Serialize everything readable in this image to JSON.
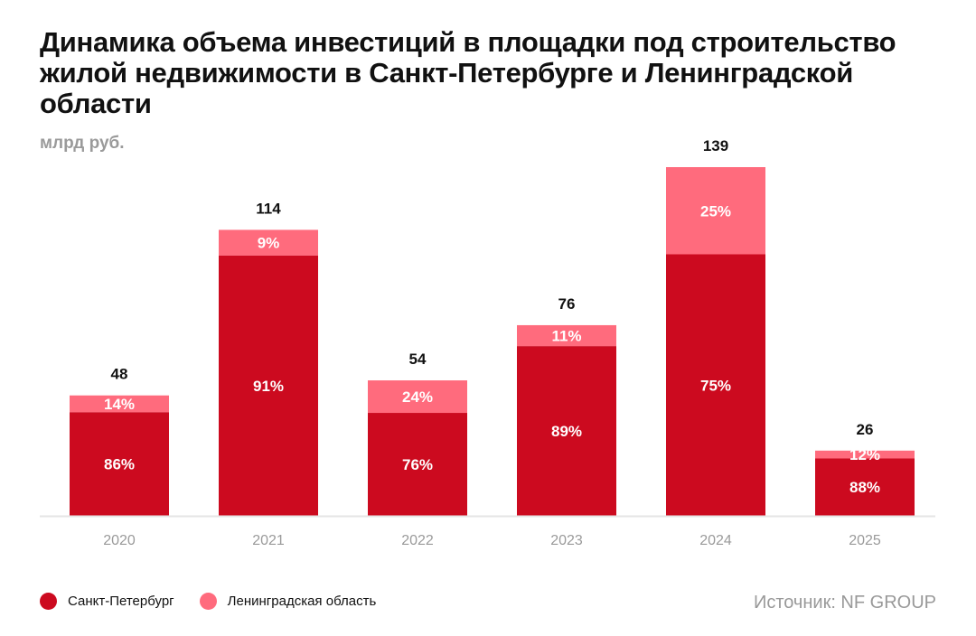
{
  "title": "Динамика объема инвестиций в площадки под строительство жилой недвижимости в Санкт-Петербурге и Ленинградской области",
  "unit_label": "млрд руб.",
  "source": "Источник: NF GROUP",
  "colors": {
    "spb": "#CC0A1F",
    "lo": "#FF6B7D",
    "axis": "#E5E5E5",
    "tick": "#9A9A9A"
  },
  "chart_data": {
    "type": "bar",
    "stacked": true,
    "categories": [
      "2020",
      "2021",
      "2022",
      "2023",
      "2024",
      "2025"
    ],
    "totals": [
      48,
      114,
      54,
      76,
      139,
      26
    ],
    "series": [
      {
        "name": "Санкт-Петербург",
        "percent": [
          86,
          91,
          76,
          89,
          75,
          88
        ]
      },
      {
        "name": "Ленинградская область",
        "percent": [
          14,
          9,
          24,
          11,
          25,
          12
        ]
      }
    ],
    "ylim": [
      0,
      139
    ],
    "grid": false,
    "legend_position": "bottom-left"
  }
}
